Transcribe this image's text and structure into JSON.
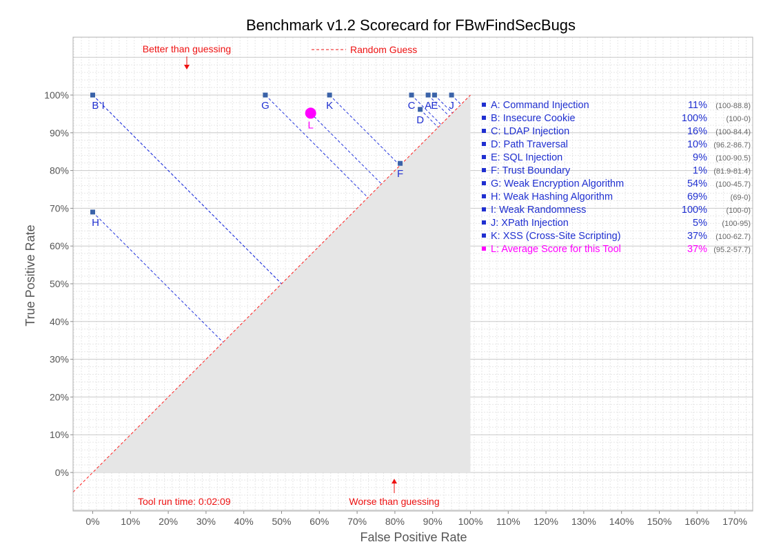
{
  "chart_data": {
    "type": "scatter",
    "title": "Benchmark v1.2 Scorecard for FBwFindSecBugs",
    "xlabel": "False Positive Rate",
    "ylabel": "True Positive Rate",
    "xlim": [
      -5,
      175
    ],
    "ylim": [
      -10,
      110
    ],
    "x_ticks": [
      "0%",
      "10%",
      "20%",
      "30%",
      "40%",
      "50%",
      "60%",
      "70%",
      "80%",
      "90%",
      "100%",
      "110%",
      "120%",
      "130%",
      "140%",
      "150%",
      "160%",
      "170%"
    ],
    "y_ticks": [
      "0%",
      "10%",
      "20%",
      "30%",
      "40%",
      "50%",
      "60%",
      "70%",
      "80%",
      "90%",
      "100%"
    ],
    "grid": true,
    "annotations": {
      "better": "Better than guessing",
      "worse": "Worse than guessing",
      "random_guess": "Random Guess",
      "run_time": "Tool run time: 0:02:09"
    },
    "point_labels": {
      "BI": "B I"
    },
    "points": [
      {
        "key": "A",
        "x": 88.8,
        "y": 100
      },
      {
        "key": "B",
        "x": 0,
        "y": 100
      },
      {
        "key": "C",
        "x": 84.4,
        "y": 100
      },
      {
        "key": "D",
        "x": 86.7,
        "y": 96.2
      },
      {
        "key": "E",
        "x": 90.5,
        "y": 100
      },
      {
        "key": "F",
        "x": 81.4,
        "y": 81.9
      },
      {
        "key": "G",
        "x": 45.7,
        "y": 100
      },
      {
        "key": "H",
        "x": 0,
        "y": 69
      },
      {
        "key": "I",
        "x": 0,
        "y": 100
      },
      {
        "key": "J",
        "x": 95,
        "y": 100
      },
      {
        "key": "K",
        "x": 62.7,
        "y": 100
      }
    ],
    "average": {
      "key": "L",
      "x": 57.7,
      "y": 95.2
    },
    "legend": [
      {
        "key": "A",
        "label": "A: Command Injection",
        "score": "11%",
        "range": "(100-88.8)"
      },
      {
        "key": "B",
        "label": "B: Insecure Cookie",
        "score": "100%",
        "range": "(100-0)"
      },
      {
        "key": "C",
        "label": "C: LDAP Injection",
        "score": "16%",
        "range": "(100-84.4)"
      },
      {
        "key": "D",
        "label": "D: Path Traversal",
        "score": "10%",
        "range": "(96.2-86.7)"
      },
      {
        "key": "E",
        "label": "E: SQL Injection",
        "score": "9%",
        "range": "(100-90.5)"
      },
      {
        "key": "F",
        "label": "F: Trust Boundary",
        "score": "1%",
        "range": "(81.9-81.4)"
      },
      {
        "key": "G",
        "label": "G: Weak Encryption Algorithm",
        "score": "54%",
        "range": "(100-45.7)"
      },
      {
        "key": "H",
        "label": "H: Weak Hashing Algorithm",
        "score": "69%",
        "range": "(69-0)"
      },
      {
        "key": "I",
        "label": "I:  Weak Randomness",
        "score": "100%",
        "range": "(100-0)"
      },
      {
        "key": "J",
        "label": "J:  XPath Injection",
        "score": "5%",
        "range": "(100-95)"
      },
      {
        "key": "K",
        "label": "K: XSS (Cross-Site Scripting)",
        "score": "37%",
        "range": "(100-62.7)"
      },
      {
        "key": "L",
        "label": "L: Average Score for this Tool",
        "score": "37%",
        "range": "(95.2-57.7)"
      }
    ],
    "colors": {
      "point": "#3a62a8",
      "text_blue": "#1f2fd0",
      "average": "#ff00ff",
      "guess_line": "#ff2020",
      "annotation": "#ee1111",
      "shade": "#e6e6e6",
      "grid_major": "#c8c8c8",
      "grid_minor": "#e6e6e6",
      "range_text": "#666666",
      "axis_label": "#555555"
    }
  }
}
